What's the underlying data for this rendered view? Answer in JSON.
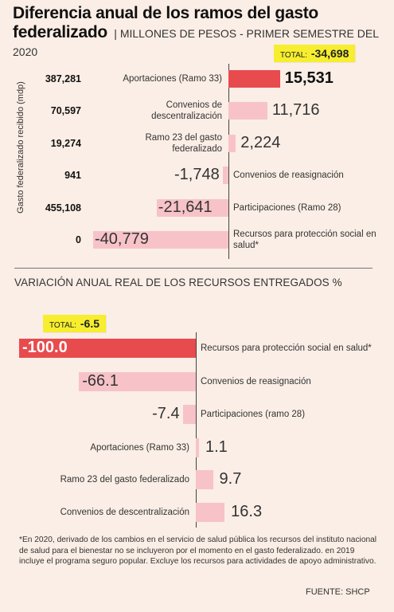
{
  "header": {
    "title_line1": "Diferencia anual de los ramos del gasto",
    "title_line2": "federalizado",
    "subtitle": "MILLONES DE PESOS - PRIMER SEMESTRE DEL 2020"
  },
  "section2_title": "VARIACIÓN ANUAL REAL DE LOS RECURSOS ENTREGADOS %",
  "footnote": "*En 2020, derivado de los cambios en el servicio de salud pública los recursos del instituto nacional de salud para el bienestar no se incluyeron por el momento en el gasto federalizado. en 2019 incluye el programa seguro popular. Excluye los recursos para actividades de apoyo administrativo.",
  "source": "FUENTE: SHCP",
  "chart_data": [
    {
      "type": "bar",
      "orientation": "horizontal",
      "title": "Diferencia anual de los ramos del gasto federalizado",
      "subtitle": "MILLONES DE PESOS - PRIMER SEMESTRE DEL 2020",
      "total_label": "TOTAL:",
      "total_value": "-34,698",
      "side_axis_label": "Gasto federalizado recibido (mdp)",
      "categories": [
        "Aportaciones (Ramo 33)",
        "Convenios de descentralización",
        "Ramo 23 del gasto federalizado",
        "Convenios de reasignación",
        "Participaciones (Ramo 28)",
        "Recursos para protección social en salud*"
      ],
      "values": [
        15531,
        11716,
        2224,
        -1748,
        -21641,
        -40779
      ],
      "value_labels": [
        "15,531",
        "11,716",
        "2,224",
        "-1,748",
        "-21,641",
        "-40,779"
      ],
      "received": [
        "387,281",
        "70,597",
        "19,274",
        "941",
        "455,108",
        "0"
      ],
      "highlight_color": "#e84b4e",
      "bar_color": "#f7c3c8"
    },
    {
      "type": "bar",
      "orientation": "horizontal",
      "title": "VARIACIÓN ANUAL REAL DE LOS RECURSOS ENTREGADOS %",
      "total_label": "TOTAL:",
      "total_value": "-6.5",
      "categories": [
        "Recursos para protección social en salud*",
        "Convenios de reasignación",
        "Participaciones (ramo 28)",
        "Aportaciones (Ramo 33)",
        "Ramo 23 del gasto federalizado",
        "Convenios de descentralización"
      ],
      "values": [
        -100.0,
        -66.1,
        -7.4,
        1.1,
        9.7,
        16.3
      ],
      "value_labels": [
        "-100.0",
        "-66.1",
        "-7.4",
        "1.1",
        "9.7",
        "16.3"
      ],
      "highlight_color": "#e84b4e",
      "bar_color": "#f7c3c8"
    }
  ]
}
